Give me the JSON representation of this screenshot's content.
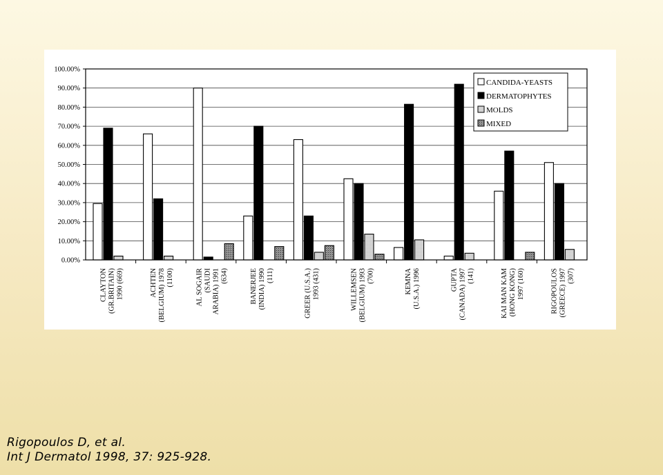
{
  "chart_data": {
    "type": "bar",
    "title": "",
    "xlabel": "",
    "ylabel": "",
    "ylim": [
      0,
      100
    ],
    "y_ticks": [
      "0.00%",
      "10.00%",
      "20.00%",
      "30.00%",
      "40.00%",
      "50.00%",
      "60.00%",
      "70.00%",
      "80.00%",
      "90.00%",
      "100.00%"
    ],
    "grid": true,
    "legend_position": "top-right",
    "categories": [
      [
        "CLAYTON",
        "(GR.BRITAIN)",
        "1990  (669)"
      ],
      [
        "ACHTEN",
        "(BELGIUM) 1978",
        "(1100)"
      ],
      [
        "AL SOGAIR",
        "(SAUDI",
        "ARABIA) 1991",
        "(634)"
      ],
      [
        "BANERJEE",
        "(INDIA) 1990",
        "(111)"
      ],
      [
        "GREER (U.S.A.)",
        "1993 (431)"
      ],
      [
        "WILLEMSEN",
        "(BELGIUM) 1993",
        "(700)"
      ],
      [
        "KEMNA",
        "(U.S.A.) 1996"
      ],
      [
        "GUPTA",
        "(CANADA) 1997",
        "(141)"
      ],
      [
        "KAI MAN KAM",
        "(HONG KONG)",
        "1997 (160)"
      ],
      [
        "RIGOPOULOS",
        "(GREECE) 1997",
        "(307)"
      ]
    ],
    "series": [
      {
        "name": "CANDIDA-YEASTS",
        "color": "#ffffff",
        "values": [
          29.5,
          66,
          90,
          23,
          63,
          42.5,
          6.5,
          2,
          36,
          51
        ]
      },
      {
        "name": "DERMATOPHYTES",
        "color": "#000000",
        "values": [
          69,
          32,
          1.5,
          70,
          23,
          40,
          81.5,
          92,
          57,
          40
        ]
      },
      {
        "name": "MOLDS",
        "color": "#cccccc",
        "values": [
          2,
          2,
          0,
          0,
          4,
          13.5,
          10.5,
          3.5,
          0,
          5.5
        ]
      },
      {
        "name": "MIXED",
        "color": "#888888",
        "values": [
          0,
          0,
          8.5,
          7,
          7.5,
          3,
          0,
          0,
          4,
          0
        ]
      }
    ]
  },
  "citation": {
    "line1": "Rigopoulos D, et al.",
    "line2": "Int J Dermatol 1998, 37: 925-928."
  }
}
